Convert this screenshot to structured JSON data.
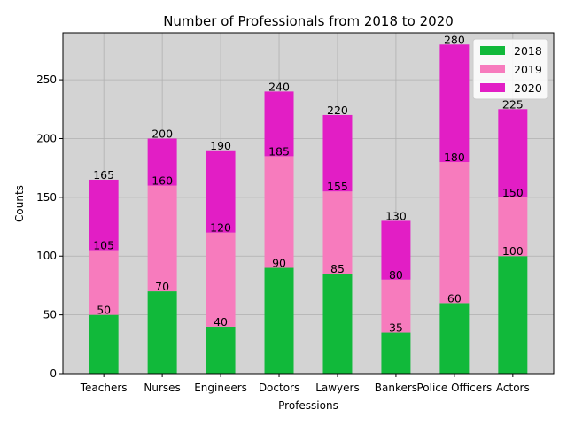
{
  "chart_data": {
    "type": "bar",
    "stacked": true,
    "title": "Number of Professionals from 2018 to 2020",
    "xlabel": "Professions",
    "ylabel": "Counts",
    "categories": [
      "Teachers",
      "Nurses",
      "Engineers",
      "Doctors",
      "Lawyers",
      "Bankers",
      "Police Officers",
      "Actors"
    ],
    "series": [
      {
        "name": "2018",
        "color": "#11b93a",
        "values": [
          50,
          70,
          40,
          90,
          85,
          35,
          60,
          100
        ]
      },
      {
        "name": "2019",
        "color": "#f77bbd",
        "values": [
          55,
          90,
          80,
          95,
          70,
          45,
          120,
          50
        ]
      },
      {
        "name": "2020",
        "color": "#e21ec5",
        "values": [
          60,
          40,
          70,
          55,
          65,
          50,
          100,
          75
        ]
      }
    ],
    "cumulative_labels": [
      [
        50,
        70,
        40,
        90,
        85,
        35,
        60,
        100
      ],
      [
        105,
        160,
        120,
        185,
        155,
        80,
        180,
        150
      ],
      [
        165,
        200,
        190,
        240,
        220,
        130,
        280,
        225
      ]
    ],
    "ylim": [
      0,
      290
    ],
    "yticks": [
      0,
      50,
      100,
      150,
      200,
      250
    ],
    "grid": true,
    "legend_position": "top-right",
    "background": "#d3d3d3"
  }
}
